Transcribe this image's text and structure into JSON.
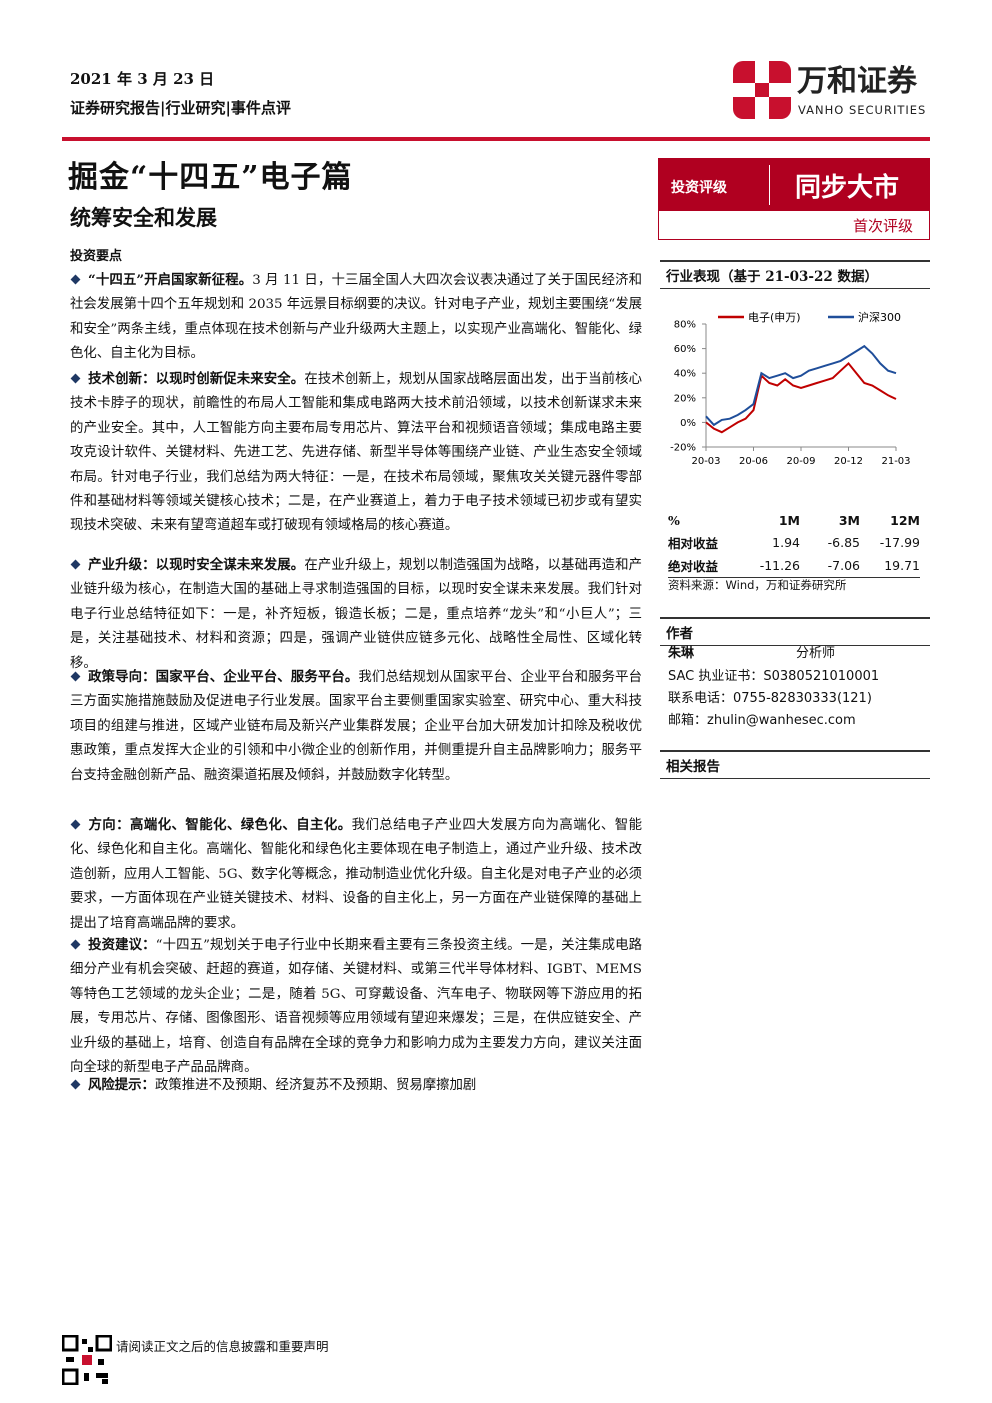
{
  "header": {
    "date": "2021 年 3 月 23 日",
    "report_type": "证券研究报告|行业研究|事件点评",
    "logo_cn": "万和证券",
    "logo_en": "VANHO SECURITIES"
  },
  "title": "掘金“十四五”电子篇",
  "subtitle": "统筹安全和发展",
  "key_points_heading": "投资要点",
  "points": [
    {
      "bold": "“十四五”开启国家新征程。",
      "text": "3 月 11 日，十三届全国人大四次会议表决通过了关于国民经济和社会发展第十四个五年规划和 2035 年远景目标纲要的决议。针对电子产业，规划主要围绕“发展和安全”两条主线，重点体现在技术创新与产业升级两大主题上，以实现产业高端化、智能化、绿色化、自主化为目标。"
    },
    {
      "bold": "技术创新：以现时创新促未来安全。",
      "text": "在技术创新上，规划从国家战略层面出发，出于当前核心技术卡脖子的现状，前瞻性的布局人工智能和集成电路两大技术前沿领域，以技术创新谋求未来的产业安全。其中，人工智能方向主要布局专用芯片、算法平台和视频语音领域；集成电路主要攻克设计软件、关键材料、先进工艺、先进存储、新型半导体等围绕产业链、产业生态安全领域布局。针对电子行业，我们总结为两大特征：一是，在技术布局领域，聚焦攻关关键元器件零部件和基础材料等领域关键核心技术；二是，在产业赛道上，着力于电子技术领域已初步或有望实现技术突破、未来有望弯道超车或打破现有领域格局的核心赛道。"
    },
    {
      "bold": "产业升级：以现时安全谋未来发展。",
      "text": "在产业升级上，规划以制造强国为战略，以基础再造和产业链升级为核心，在制造大国的基础上寻求制造强国的目标，以现时安全谋未来发展。我们针对电子行业总结特征如下：一是，补齐短板，锻造长板；二是，重点培养“龙头”和“小巨人”；三是，关注基础技术、材料和资源；四是，强调产业链供应链多元化、战略性全局性、区域化转移。"
    },
    {
      "bold": "政策导向：国家平台、企业平台、服务平台。",
      "text": "我们总结规划从国家平台、企业平台和服务平台三方面实施措施鼓励及促进电子行业发展。国家平台主要侧重国家实验室、研究中心、重大科技项目的组建与推进，区域产业链布局及新兴产业集群发展；企业平台加大研发加计扣除及税收优惠政策，重点发挥大企业的引领和中小微企业的创新作用，并侧重提升自主品牌影响力；服务平台支持金融创新产品、融资渠道拓展及倾斜，并鼓励数字化转型。"
    },
    {
      "bold": "方向：高端化、智能化、绿色化、自主化。",
      "text": "我们总结电子产业四大发展方向为高端化、智能化、绿色化和自主化。高端化、智能化和绿色化主要体现在电子制造上，通过产业升级、技术改造创新，应用人工智能、5G、数字化等概念，推动制造业优化升级。自主化是对电子产业的必须要求，一方面体现在产业链关键技术、材料、设备的自主化上，另一方面在产业链保障的基础上提出了培育高端品牌的要求。"
    },
    {
      "bold": "投资建议：",
      "text": "“十四五”规划关于电子行业中长期来看主要有三条投资主线。一是，关注集成电路细分产业有机会突破、赶超的赛道，如存储、关键材料、或第三代半导体材料、IGBT、MEMS 等特色工艺领域的龙头企业；二是，随着 5G、可穿戴设备、汽车电子、物联网等下游应用的拓展，专用芯片、存储、图像图形、语音视频等应用领域有望迎来爆发；三是，在供应链安全、产业升级的基础上，培育、创造自有品牌在全球的竞争力和影响力成为主要发力方向，建议关注面向全球的新型电子产品品牌商。"
    },
    {
      "bold": "风险提示：",
      "text": "政策推进不及预期、经济复苏不及预期、贸易摩擦加剧"
    }
  ],
  "rating": {
    "label": "投资评级",
    "value": "同步大市",
    "note": "首次评级"
  },
  "performance_heading": "行业表现（基于 21-03-22 数据）",
  "chart_data": {
    "type": "line",
    "categories": [
      "20-03",
      null,
      null,
      null,
      null,
      null,
      "20-06",
      null,
      null,
      null,
      null,
      null,
      "20-09",
      null,
      null,
      null,
      null,
      null,
      "20-12",
      null,
      null,
      null,
      null,
      null,
      "21-03"
    ],
    "series": [
      {
        "name": "电子(申万)",
        "color": "#c00000",
        "values": [
          0,
          -5,
          -8,
          -4,
          0,
          3,
          10,
          38,
          32,
          30,
          35,
          30,
          28,
          30,
          32,
          34,
          36,
          42,
          48,
          40,
          32,
          30,
          26,
          22,
          19
        ]
      },
      {
        "name": "沪深300",
        "color": "#1f4e9a",
        "values": [
          5,
          -2,
          2,
          3,
          6,
          10,
          15,
          40,
          36,
          38,
          40,
          36,
          38,
          42,
          44,
          46,
          48,
          50,
          54,
          58,
          62,
          56,
          48,
          42,
          40
        ]
      }
    ],
    "ylim": [
      -20,
      80
    ],
    "yticks": [
      {
        "value": -20,
        "label": "-20%"
      },
      {
        "value": 0,
        "label": "0%"
      },
      {
        "value": 20,
        "label": "20%"
      },
      {
        "value": 40,
        "label": "40%"
      },
      {
        "value": 60,
        "label": "60%"
      },
      {
        "value": 80,
        "label": "80%"
      }
    ],
    "grid": false
  },
  "returns_table": {
    "header": [
      "%",
      "1M",
      "3M",
      "12M"
    ],
    "rows": [
      [
        "相对收益",
        1.94,
        -6.85,
        -17.99
      ],
      [
        "绝对收益",
        -11.26,
        -7.06,
        19.71
      ]
    ]
  },
  "source": "资料来源：Wind，万和证券研究所",
  "author": {
    "heading": "作者",
    "name": "朱琳",
    "role": "分析师",
    "sac": "SAC 执业证书：S0380521010001",
    "phone": "联系电话：0755-82830333(121)",
    "email": "邮箱：zhulin@wanhesec.com"
  },
  "related_heading": "相关报告",
  "footer": "请阅读正文之后的信息披露和重要声明"
}
